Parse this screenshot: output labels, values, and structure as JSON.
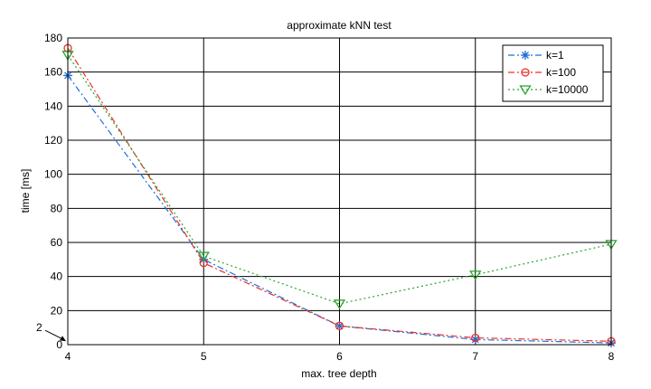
{
  "chart_data": {
    "type": "line",
    "title": "approximate kNN test",
    "xlabel": "max. tree depth",
    "ylabel": "time [ms]",
    "x": [
      4,
      5,
      6,
      7,
      8
    ],
    "xlim": [
      4,
      8
    ],
    "ylim": [
      0,
      180
    ],
    "xticks": [
      4,
      5,
      6,
      7,
      8
    ],
    "yticks": [
      0,
      20,
      40,
      60,
      80,
      100,
      120,
      140,
      160,
      180
    ],
    "grid": true,
    "legend_position": "top-right",
    "annotation": {
      "text": "2",
      "x": 4,
      "y": 2
    },
    "series": [
      {
        "name": "k=1",
        "values": [
          158,
          50,
          11,
          3,
          1
        ],
        "color": "#1f6fd6",
        "marker": "asterisk",
        "dash": "dash-dot"
      },
      {
        "name": "k=100",
        "values": [
          174,
          48,
          11,
          4,
          2
        ],
        "color": "#e8302b",
        "marker": "circle",
        "dash": "dash-dot"
      },
      {
        "name": "k=10000",
        "values": [
          170,
          52,
          24,
          41,
          59
        ],
        "color": "#2aa52a",
        "marker": "triangle-down",
        "dash": "dotted"
      }
    ]
  }
}
